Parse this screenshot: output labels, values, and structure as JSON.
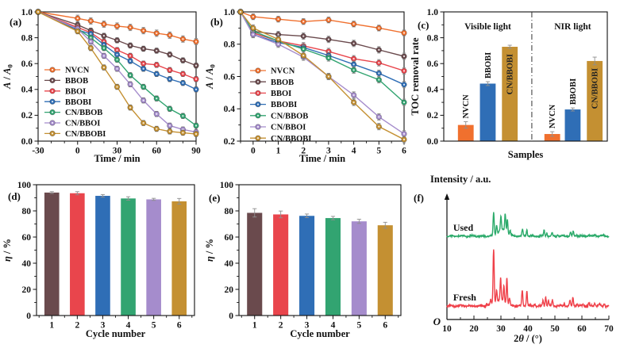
{
  "palette": {
    "orange": "#F0702E",
    "brown": "#6A4A4D",
    "red": "#E9454C",
    "blue": "#2F6EB6",
    "green": "#32A471",
    "purple": "#A58CCC",
    "gold": "#C49032",
    "xrd_green": "#2BAA6A",
    "xrd_red": "#EF4049",
    "error_bar": "#8F8F8F",
    "axis": "#111111"
  },
  "chart_data": [
    {
      "id": "a",
      "panel_label": "(a)",
      "type": "line",
      "xlabel": "Time / min",
      "ylabel_parts": [
        {
          "t": "A",
          "i": 1
        },
        {
          "t": " / "
        },
        {
          "t": "A",
          "i": 1
        },
        {
          "t": "0",
          "sub": 1
        }
      ],
      "xlim": [
        -30,
        90
      ],
      "ylim": [
        0,
        1
      ],
      "xticks": [
        {
          "v": -30,
          "l": "-30"
        },
        {
          "v": 0,
          "l": "0"
        },
        {
          "v": 30,
          "l": "30"
        },
        {
          "v": 60,
          "l": "60"
        },
        {
          "v": 90,
          "l": "90"
        }
      ],
      "xminor": 10,
      "yticks": [
        {
          "v": 0,
          "l": "0.0"
        },
        {
          "v": 0.2,
          "l": "0.2"
        },
        {
          "v": 0.4,
          "l": "0.4"
        },
        {
          "v": 0.6,
          "l": "0.6"
        },
        {
          "v": 0.8,
          "l": "0.8"
        },
        {
          "v": 1,
          "l": "1.0"
        }
      ],
      "yminor": 0.1,
      "x": [
        -30,
        0,
        10,
        20,
        30,
        40,
        50,
        60,
        70,
        80,
        90
      ],
      "series": [
        {
          "name": "NVCN",
          "color": "orange",
          "err": 0.025,
          "y": [
            1,
            0.95,
            0.93,
            0.905,
            0.89,
            0.88,
            0.855,
            0.835,
            0.82,
            0.79,
            0.77
          ]
        },
        {
          "name": "BBOB",
          "color": "brown",
          "err": 0.02,
          "y": [
            1,
            0.9,
            0.855,
            0.815,
            0.78,
            0.74,
            0.715,
            0.7,
            0.67,
            0.625,
            0.585
          ]
        },
        {
          "name": "BBOI",
          "color": "red",
          "err": 0.02,
          "y": [
            1,
            0.88,
            0.84,
            0.77,
            0.705,
            0.66,
            0.6,
            0.59,
            0.55,
            0.52,
            0.48
          ]
        },
        {
          "name": "BBOBI",
          "color": "blue",
          "err": 0.02,
          "y": [
            1,
            0.86,
            0.83,
            0.745,
            0.67,
            0.62,
            0.56,
            0.52,
            0.48,
            0.45,
            0.4
          ]
        },
        {
          "name": "CN/BBOB",
          "color": "green",
          "err": 0.02,
          "y": [
            1,
            0.87,
            0.8,
            0.72,
            0.63,
            0.51,
            0.42,
            0.33,
            0.25,
            0.195,
            0.12
          ]
        },
        {
          "name": "CN/BBOI",
          "color": "purple",
          "err": 0.02,
          "y": [
            1,
            0.87,
            0.77,
            0.66,
            0.56,
            0.44,
            0.315,
            0.21,
            0.12,
            0.09,
            0.07
          ]
        },
        {
          "name": "CN/BBOBI",
          "color": "gold",
          "err": 0.02,
          "y": [
            1,
            0.85,
            0.72,
            0.57,
            0.42,
            0.26,
            0.14,
            0.095,
            0.075,
            0.065,
            0.055
          ]
        }
      ]
    },
    {
      "id": "b",
      "panel_label": "(b)",
      "type": "line",
      "xlabel": "Time / min",
      "ylabel_parts": [
        {
          "t": "A",
          "i": 1
        },
        {
          "t": " / "
        },
        {
          "t": "A",
          "i": 1
        },
        {
          "t": "0",
          "sub": 1
        }
      ],
      "xlim": [
        -0.5,
        6
      ],
      "ylim": [
        0.2,
        1
      ],
      "xticks": [
        {
          "v": 0,
          "l": "0"
        },
        {
          "v": 1,
          "l": "1"
        },
        {
          "v": 2,
          "l": "2"
        },
        {
          "v": 3,
          "l": "3"
        },
        {
          "v": 4,
          "l": "4"
        },
        {
          "v": 5,
          "l": "5"
        },
        {
          "v": 6,
          "l": "6"
        }
      ],
      "xminor": 0.5,
      "yticks": [
        {
          "v": 0.2,
          "l": "0.2"
        },
        {
          "v": 0.4,
          "l": "0.4"
        },
        {
          "v": 0.6,
          "l": "0.6"
        },
        {
          "v": 0.8,
          "l": "0.8"
        },
        {
          "v": 1,
          "l": "1.0"
        }
      ],
      "yminor": 0.1,
      "x": [
        -0.5,
        0,
        1,
        2,
        3,
        4,
        5,
        6
      ],
      "series": [
        {
          "name": "NVCN",
          "color": "orange",
          "err": 0.018,
          "y": [
            1,
            0.97,
            0.955,
            0.94,
            0.95,
            0.925,
            0.9,
            0.87
          ]
        },
        {
          "name": "BBOB",
          "color": "brown",
          "err": 0.02,
          "y": [
            1,
            0.88,
            0.86,
            0.85,
            0.83,
            0.805,
            0.765,
            0.725
          ]
        },
        {
          "name": "BBOI",
          "color": "red",
          "err": 0.02,
          "y": [
            1,
            0.87,
            0.82,
            0.79,
            0.755,
            0.71,
            0.685,
            0.635
          ]
        },
        {
          "name": "BBOBI",
          "color": "blue",
          "err": 0.02,
          "y": [
            1,
            0.86,
            0.81,
            0.78,
            0.73,
            0.675,
            0.62,
            0.55
          ]
        },
        {
          "name": "CN/BBOB",
          "color": "green",
          "err": 0.02,
          "y": [
            1,
            0.88,
            0.82,
            0.77,
            0.715,
            0.64,
            0.58,
            0.44
          ]
        },
        {
          "name": "CN/BBOI",
          "color": "purple",
          "err": 0.02,
          "y": [
            1,
            0.86,
            0.8,
            0.72,
            0.6,
            0.485,
            0.35,
            0.245
          ]
        },
        {
          "name": "CN/BBOBI",
          "color": "gold",
          "err": 0.02,
          "y": [
            1,
            0.9,
            0.83,
            0.73,
            0.6,
            0.44,
            0.29,
            0.21
          ]
        }
      ]
    },
    {
      "id": "c",
      "panel_label": "(c)",
      "type": "groupbar",
      "xlabel": "Samples",
      "ylabel": "TOC removal rate",
      "ylim": [
        0,
        1
      ],
      "yticks": [
        {
          "v": 0,
          "l": "0.0"
        },
        {
          "v": 0.2,
          "l": "0.2"
        },
        {
          "v": 0.4,
          "l": "0.4"
        },
        {
          "v": 0.6,
          "l": "0.6"
        },
        {
          "v": 0.8,
          "l": "0.8"
        },
        {
          "v": 1,
          "l": "1.0"
        }
      ],
      "yminor": 0.1,
      "xlim": [
        0,
        10.4
      ],
      "bar_halfwidth": 0.5,
      "divider_x": 5.6,
      "groups": [
        {
          "title": "Visible light",
          "title_x": 2.8,
          "bars": [
            {
              "label": "NVCN",
              "x": 1.4,
              "color": "orange",
              "value": 0.125,
              "err": 0.025,
              "label_pos": "above"
            },
            {
              "label": "BBOBI",
              "x": 2.8,
              "color": "blue",
              "value": 0.445,
              "err": 0.015,
              "label_pos": "above"
            },
            {
              "label": "CN/BBOBI",
              "x": 4.2,
              "color": "gold",
              "value": 0.73,
              "err": 0.012,
              "label_pos": "inside"
            }
          ]
        },
        {
          "title": "NIR light",
          "title_x": 8.2,
          "bars": [
            {
              "label": "NVCN",
              "x": 6.9,
              "color": "orange",
              "value": 0.055,
              "err": 0.018,
              "label_pos": "above"
            },
            {
              "label": "BBOBI",
              "x": 8.2,
              "color": "blue",
              "value": 0.245,
              "err": 0.012,
              "label_pos": "above"
            },
            {
              "label": "CN/BBOBI",
              "x": 9.6,
              "color": "gold",
              "value": 0.62,
              "err": 0.03,
              "label_pos": "inside"
            }
          ]
        }
      ]
    },
    {
      "id": "d",
      "panel_label": "(d)",
      "type": "bar",
      "xlabel": "Cycle number",
      "ylabel_parts": [
        {
          "t": "η",
          "i": 1
        },
        {
          "t": " / %"
        }
      ],
      "ylim": [
        0,
        100
      ],
      "yticks": [
        {
          "v": 0,
          "l": "0"
        },
        {
          "v": 20,
          "l": "20"
        },
        {
          "v": 40,
          "l": "40"
        },
        {
          "v": 60,
          "l": "60"
        },
        {
          "v": 80,
          "l": "80"
        },
        {
          "v": 100,
          "l": "100"
        }
      ],
      "yminor": 10,
      "xlim": [
        0.4,
        6.6
      ],
      "bar_halfwidth": 0.29,
      "xminor": 0.5,
      "categories": [
        "1",
        "2",
        "3",
        "4",
        "5",
        "6"
      ],
      "values": [
        94,
        93.5,
        91.5,
        89.5,
        88.8,
        87.3
      ],
      "errors": [
        0.7,
        1.2,
        1.0,
        1.3,
        0.8,
        2.2
      ],
      "bar_colors": [
        "brown",
        "red",
        "blue",
        "green",
        "purple",
        "gold"
      ]
    },
    {
      "id": "e",
      "panel_label": "(e)",
      "type": "bar",
      "xlabel": "Cycle number",
      "ylabel_parts": [
        {
          "t": "η",
          "i": 1
        },
        {
          "t": " / %"
        }
      ],
      "ylim": [
        0,
        100
      ],
      "yticks": [
        {
          "v": 0,
          "l": "0"
        },
        {
          "v": 20,
          "l": "20"
        },
        {
          "v": 40,
          "l": "40"
        },
        {
          "v": 60,
          "l": "60"
        },
        {
          "v": 80,
          "l": "80"
        },
        {
          "v": 100,
          "l": "100"
        }
      ],
      "yminor": 10,
      "xlim": [
        0.4,
        6.6
      ],
      "bar_halfwidth": 0.29,
      "xminor": 0.5,
      "categories": [
        "1",
        "2",
        "3",
        "4",
        "5",
        "6"
      ],
      "values": [
        78.5,
        77.3,
        76.2,
        74.5,
        72,
        69
      ],
      "errors": [
        3.2,
        2.6,
        1.4,
        1.3,
        1.6,
        2.3
      ],
      "bar_colors": [
        "brown",
        "red",
        "blue",
        "green",
        "purple",
        "gold"
      ]
    },
    {
      "id": "f",
      "panel_label": "(f)",
      "type": "xrd",
      "ylabel": "Intensity / a.u.",
      "origin_label": "O",
      "xlabel_parts": [
        {
          "t": "2"
        },
        {
          "t": "θ",
          "i": 1
        },
        {
          "t": " / (°)"
        }
      ],
      "xlim": [
        10,
        70
      ],
      "xticks": [
        {
          "v": 10,
          "l": "10"
        },
        {
          "v": 20,
          "l": "20"
        },
        {
          "v": 30,
          "l": "30"
        },
        {
          "v": 40,
          "l": "40"
        },
        {
          "v": 50,
          "l": "50"
        },
        {
          "v": 60,
          "l": "60"
        },
        {
          "v": 70,
          "l": "70"
        }
      ],
      "xminor": 5,
      "curves": [
        {
          "name": "Used",
          "color": "xrd_green",
          "baseline": 0.67,
          "scale": 0.18,
          "label_x": 12.3,
          "noise": 0.01,
          "peaks": [
            [
              27.3,
              1.0
            ],
            [
              28.4,
              0.38
            ],
            [
              30,
              0.6
            ],
            [
              31.6,
              0.8
            ],
            [
              32.4,
              0.62
            ],
            [
              33.4,
              0.2
            ],
            [
              38,
              0.3
            ],
            [
              39.6,
              0.3
            ],
            [
              46,
              0.26
            ],
            [
              47,
              0.14
            ],
            [
              49,
              0.12
            ],
            [
              51,
              0.06
            ],
            [
              55.8,
              0.18
            ],
            [
              56.8,
              0.2
            ],
            [
              58,
              0.07
            ],
            [
              62.5,
              0.07
            ],
            [
              65,
              0.08
            ],
            [
              68,
              0.06
            ]
          ],
          "broad": [
            [
              30.5,
              0.28,
              2.2
            ]
          ]
        },
        {
          "name": "Fresh",
          "color": "xrd_red",
          "baseline": 0.109,
          "scale": 0.44,
          "label_x": 12.3,
          "noise": 0.012,
          "peaks": [
            [
              24.8,
              0.05
            ],
            [
              26.2,
              0.09
            ],
            [
              27.3,
              1.0
            ],
            [
              28.4,
              0.22
            ],
            [
              29.9,
              0.4
            ],
            [
              31.1,
              0.32
            ],
            [
              32.2,
              0.48
            ],
            [
              33.2,
              0.12
            ],
            [
              37.9,
              0.28
            ],
            [
              39.6,
              0.28
            ],
            [
              42.5,
              0.04
            ],
            [
              45.6,
              0.1
            ],
            [
              46.6,
              0.16
            ],
            [
              47.6,
              0.09
            ],
            [
              49.1,
              0.11
            ],
            [
              53.5,
              0.04
            ],
            [
              55.6,
              0.1
            ],
            [
              56.7,
              0.16
            ],
            [
              58.2,
              0.05
            ],
            [
              60.5,
              0.03
            ],
            [
              62.6,
              0.06
            ],
            [
              64.8,
              0.06
            ],
            [
              66.5,
              0.03
            ],
            [
              68.3,
              0.05
            ]
          ],
          "broad": [
            [
              29.5,
              0.1,
              2.6
            ]
          ]
        }
      ]
    }
  ]
}
